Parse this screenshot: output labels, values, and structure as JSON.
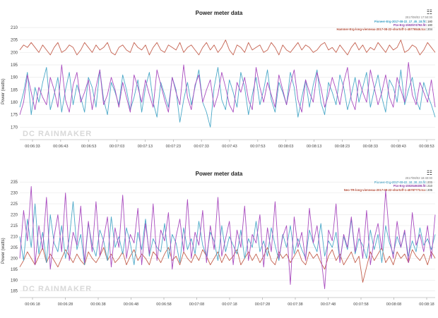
{
  "watermark": "DC RAINMAKER",
  "chart_data": [
    {
      "type": "line",
      "title": "Power meter data",
      "xlabel": "",
      "ylabel": "Power (watts)",
      "ylim": [
        165,
        212
      ],
      "yticks": [
        170,
        175,
        180,
        185,
        190,
        195,
        200,
        205,
        210
      ],
      "x_ticks": [
        "00:06:33",
        "00:06:43",
        "00:06:53",
        "00:07:03",
        "00:07:13",
        "00:07:23",
        "00:07:33",
        "00:07:43",
        "00:07:53",
        "00:08:03",
        "00:08:13",
        "00:08:23",
        "00:08:33",
        "00:08:43",
        "00:08:53"
      ],
      "grid": true,
      "legend_position": "top-right",
      "tooltip": {
        "timestamp": "2017/08/02 17:50:00",
        "entries": [
          {
            "label": "Pioneer-Erg-2017-08-22_17_45_18.fit",
            "value": "180",
            "color": "#3a9fc4"
          },
          {
            "label": "P1s-Erg-1502574792.fit",
            "value": "180",
            "color": "#8b3aa5"
          },
          {
            "label": "Hammer-Erg-long-vienneau-2017-08-22-shortoff-1-45776546.tcx",
            "value": "204",
            "color": "#b5503c"
          }
        ]
      },
      "series": [
        {
          "name": "Hammer",
          "color": "#c4614f",
          "values": [
            201,
            203,
            202,
            204,
            202,
            200,
            203,
            201,
            199,
            202,
            204,
            200,
            201,
            203,
            202,
            199,
            201,
            204,
            202,
            200,
            203,
            201,
            202,
            204,
            200,
            199,
            202,
            203,
            201,
            200,
            204,
            202,
            201,
            203,
            199,
            202,
            204,
            201,
            200,
            203,
            202,
            201,
            204,
            200,
            202,
            203,
            201,
            199,
            202,
            204,
            201,
            203,
            200,
            202,
            205,
            201,
            199,
            203,
            202,
            200,
            204,
            201,
            202,
            203,
            200,
            201,
            204,
            202,
            199,
            203,
            201,
            200,
            202,
            204,
            201,
            203,
            202,
            200,
            201,
            203,
            204,
            201,
            202,
            200,
            203,
            201,
            199,
            202,
            204,
            201,
            203,
            200,
            202,
            201,
            204,
            202,
            200,
            203,
            201,
            202,
            205,
            200,
            201,
            203,
            202,
            199,
            201,
            204,
            202,
            200
          ]
        },
        {
          "name": "Pioneer",
          "color": "#4aa8c8",
          "values": [
            178,
            184,
            192,
            175,
            186,
            180,
            188,
            194,
            177,
            183,
            190,
            176,
            185,
            192,
            179,
            187,
            182,
            176,
            190,
            186,
            178,
            193,
            181,
            175,
            188,
            184,
            179,
            191,
            185,
            177,
            182,
            189,
            176,
            186,
            192,
            180,
            174,
            188,
            183,
            178,
            190,
            185,
            172,
            181,
            188,
            179,
            186,
            193,
            180,
            176,
            170,
            186,
            194,
            181,
            177,
            189,
            184,
            178,
            192,
            186,
            175,
            183,
            190,
            179,
            185,
            193,
            181,
            176,
            188,
            184,
            179,
            192,
            186,
            174,
            182,
            189,
            178,
            187,
            193,
            180,
            175,
            188,
            184,
            179,
            191,
            186,
            177,
            183,
            190,
            180,
            186,
            192,
            178,
            185,
            191,
            182,
            176,
            189,
            186,
            180,
            193,
            179,
            185,
            190,
            181,
            177,
            188,
            183,
            179,
            174
          ]
        },
        {
          "name": "P1s",
          "color": "#a94cbf",
          "values": [
            175,
            180,
            191,
            184,
            177,
            186,
            182,
            179,
            190,
            185,
            178,
            195,
            181,
            176,
            187,
            192,
            180,
            184,
            189,
            177,
            186,
            193,
            179,
            183,
            190,
            185,
            178,
            188,
            182,
            176,
            191,
            186,
            180,
            189,
            183,
            178,
            193,
            187,
            181,
            176,
            190,
            184,
            179,
            195,
            182,
            177,
            187,
            191,
            180,
            185,
            189,
            178,
            183,
            192,
            186,
            179,
            176,
            188,
            184,
            190,
            181,
            177,
            194,
            186,
            180,
            188,
            183,
            178,
            191,
            185,
            179,
            187,
            193,
            181,
            176,
            189,
            184,
            180,
            192,
            186,
            178,
            183,
            190,
            185,
            179,
            188,
            194,
            181,
            177,
            189,
            184,
            180,
            193,
            186,
            179,
            184,
            191,
            182,
            178,
            190,
            185,
            180,
            196,
            183,
            179,
            188,
            184,
            180,
            189,
            178
          ]
        }
      ]
    },
    {
      "type": "line",
      "title": "Power meter data",
      "xlabel": "",
      "ylabel": "Power (watts)",
      "ylim": [
        182,
        237
      ],
      "yticks": [
        185,
        190,
        195,
        200,
        205,
        210,
        215,
        220,
        225,
        230,
        235
      ],
      "x_ticks": [
        "00:06:18",
        "00:06:28",
        "00:06:38",
        "00:06:48",
        "00:06:58",
        "00:07:08",
        "00:07:18",
        "00:07:28",
        "00:07:38",
        "00:07:48",
        "00:07:58",
        "00:08:08",
        "00:08:18"
      ],
      "grid": true,
      "legend_position": "top-right",
      "tooltip": {
        "timestamp": "2017/08/02 18:40:00",
        "entries": [
          {
            "label": "Pioneer-Erg-2017-08-22_18_38_22.fit",
            "value": "206",
            "color": "#3a9fc4"
          },
          {
            "label": "P1s-Erg-1502649408.fit",
            "value": "210",
            "color": "#8b3aa5"
          },
          {
            "label": "Neo-TR-long-vienneau-2017-08-22-shortoff-1-45787773.tcx",
            "value": "205",
            "color": "#b5503c"
          }
        ]
      },
      "series": [
        {
          "name": "Neo",
          "color": "#c4614f",
          "values": [
            196,
            199,
            203,
            200,
            197,
            201,
            205,
            198,
            202,
            199,
            196,
            200,
            204,
            201,
            198,
            202,
            199,
            197,
            203,
            200,
            198,
            201,
            205,
            199,
            202,
            198,
            200,
            203,
            197,
            201,
            204,
            199,
            202,
            200,
            197,
            203,
            201,
            198,
            202,
            205,
            199,
            201,
            197,
            203,
            200,
            198,
            202,
            199,
            204,
            201,
            197,
            200,
            203,
            198,
            202,
            199,
            201,
            204,
            197,
            200,
            203,
            199,
            202,
            198,
            201,
            205,
            199,
            197,
            203,
            200,
            202,
            198,
            201,
            204,
            199,
            197,
            203,
            200,
            202,
            198,
            195,
            201,
            204,
            199,
            202,
            197,
            200,
            203,
            198,
            201,
            189,
            196,
            203,
            199,
            202,
            205,
            198,
            201,
            197,
            203,
            200,
            202,
            198,
            204,
            201,
            199,
            202,
            197,
            203,
            200
          ]
        },
        {
          "name": "Pioneer",
          "color": "#4aa8c8",
          "values": [
            210,
            199,
            218,
            205,
            225,
            202,
            212,
            198,
            220,
            207,
            203,
            215,
            200,
            209,
            226,
            204,
            211,
            197,
            216,
            206,
            201,
            213,
            208,
            199,
            219,
            205,
            210,
            202,
            214,
            207,
            197,
            212,
            204,
            218,
            201,
            209,
            205,
            203,
            216,
            200,
            211,
            207,
            198,
            214,
            204,
            209,
            202,
            217,
            206,
            201,
            212,
            208,
            199,
            215,
            203,
            210,
            206,
            202,
            213,
            200,
            209,
            205,
            217,
            203,
            208,
            201,
            214,
            206,
            199,
            211,
            205,
            215,
            202,
            209,
            204,
            200,
            213,
            207,
            203,
            216,
            201,
            208,
            205,
            212,
            199,
            210,
            204,
            218,
            202,
            209,
            206,
            200,
            213,
            204,
            211,
            198,
            215,
            207,
            202,
            210,
            205,
            212,
            201,
            208,
            203,
            214,
            206,
            209,
            204,
            211
          ]
        },
        {
          "name": "P1s",
          "color": "#a94cbf",
          "values": [
            200,
            222,
            208,
            233,
            197,
            215,
            204,
            228,
            195,
            210,
            220,
            203,
            230,
            199,
            212,
            206,
            224,
            198,
            217,
            203,
            226,
            201,
            209,
            219,
            196,
            214,
            205,
            229,
            200,
            211,
            207,
            223,
            197,
            216,
            202,
            225,
            199,
            213,
            208,
            221,
            195,
            210,
            218,
            203,
            227,
            200,
            212,
            206,
            222,
            198,
            215,
            204,
            228,
            201,
            209,
            217,
            197,
            213,
            205,
            224,
            199,
            211,
            207,
            220,
            196,
            214,
            203,
            226,
            200,
            210,
            215,
            188,
            219,
            205,
            212,
            199,
            223,
            207,
            215,
            201,
            186,
            213,
            208,
            225,
            198,
            211,
            205,
            219,
            203,
            214,
            200,
            222,
            197,
            209,
            216,
            204,
            231,
            210,
            200,
            217,
            205,
            213,
            198,
            221,
            206,
            211,
            203,
            215,
            200,
            220
          ]
        }
      ]
    }
  ]
}
